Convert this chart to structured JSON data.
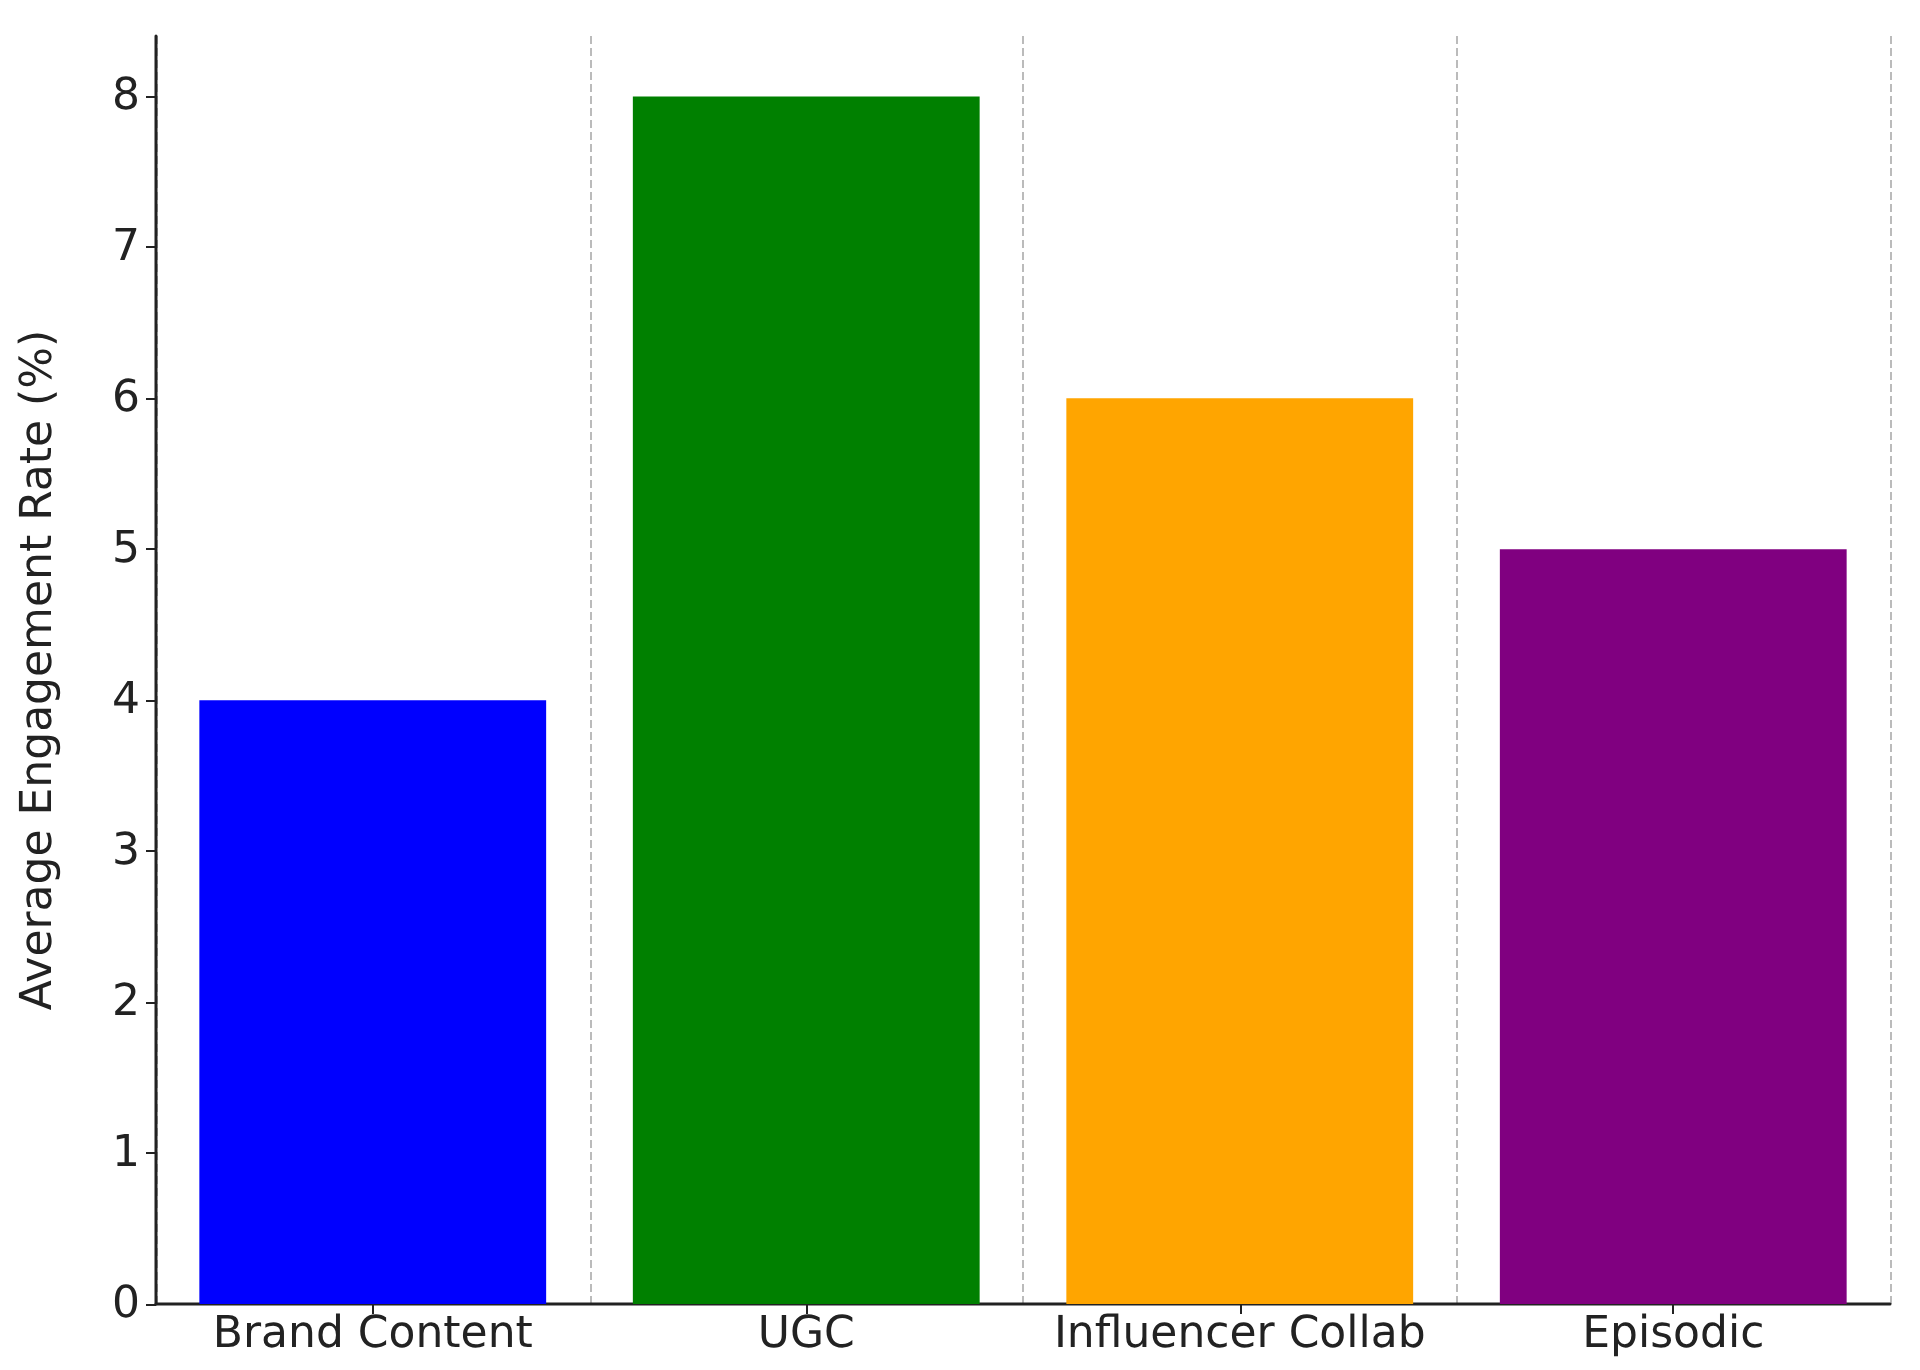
{
  "chart_data": {
    "type": "bar",
    "ylabel": "Average Engagement Rate (%)",
    "categories": [
      "Brand Content",
      "UGC",
      "Influencer Collab",
      "Episodic"
    ],
    "values": [
      4,
      8,
      6,
      5
    ],
    "colors": [
      "#0000ff",
      "#008000",
      "#ffa500",
      "#800080"
    ],
    "ylim": [
      0,
      8.4
    ],
    "yticks": [
      0,
      1,
      2,
      3,
      4,
      5,
      6,
      7,
      8
    ],
    "grid": "x"
  }
}
